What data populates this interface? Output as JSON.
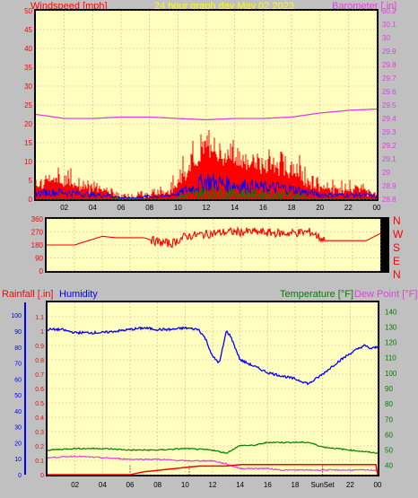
{
  "header": {
    "title": "24 hour graph day   May 02 2023",
    "left_label": "Windspeed [mph]",
    "right_label": "Barometer [.in]"
  },
  "colors": {
    "background": "#c0c0c0",
    "plot_bg": "#ffffc0",
    "grid": "#f0a0a0",
    "title": "#ffff00",
    "wind": "#ff0000",
    "gust_low": "#0000ff",
    "gust_green": "#008000",
    "barometer": "#e040e0",
    "direction": "#ff0000",
    "rain": "#ff0000",
    "humidity": "#0000ff",
    "temperature": "#008000",
    "dewpoint": "#e040e0"
  },
  "chart_data": [
    {
      "type": "bar",
      "name": "windspeed_barometer",
      "xlabel": "",
      "ylabel": "Windspeed [mph]",
      "x_ticks": [
        "02",
        "04",
        "06",
        "08",
        "10",
        "12",
        "14",
        "16",
        "18",
        "20",
        "22",
        "00"
      ],
      "y_ticks": [
        0,
        5,
        10,
        15,
        20,
        25,
        30,
        35,
        40,
        45,
        50
      ],
      "ylim": [
        0,
        50
      ],
      "y2_ticks": [
        "28.8",
        "28.9",
        "29",
        "29.1",
        "29.2",
        "29.3",
        "29.4",
        "29.5",
        "29.6",
        "29.7",
        "29.8",
        "29.9",
        "30",
        "30.1",
        "30.2"
      ],
      "y2lim": [
        28.8,
        30.2
      ],
      "grid": true,
      "series": [
        {
          "name": "Windspeed",
          "hours": [
            0,
            1,
            2,
            3,
            4,
            5,
            6,
            7,
            8,
            9,
            10,
            11,
            12,
            13,
            14,
            15,
            16,
            17,
            18,
            19,
            20,
            21,
            22,
            23,
            24
          ],
          "values": [
            4,
            5,
            5,
            4,
            3,
            3,
            1,
            1,
            2,
            2,
            4,
            8,
            13,
            11,
            10,
            9,
            8,
            8,
            7,
            5,
            3,
            3,
            3,
            3,
            2
          ]
        },
        {
          "name": "Gust",
          "hours": [
            0,
            1,
            2,
            3,
            4,
            5,
            6,
            7,
            8,
            9,
            10,
            11,
            12,
            13,
            14,
            15,
            16,
            17,
            18,
            19,
            20,
            21,
            22,
            23,
            24
          ],
          "values": [
            7,
            8,
            9,
            7,
            5,
            4,
            2,
            2,
            3,
            4,
            8,
            14,
            18,
            17,
            16,
            15,
            14,
            13,
            13,
            8,
            6,
            5,
            5,
            5,
            3
          ]
        },
        {
          "name": "Barometer",
          "hours": [
            0,
            2,
            4,
            6,
            8,
            10,
            12,
            14,
            16,
            18,
            20,
            22,
            24
          ],
          "values": [
            29.43,
            29.4,
            29.4,
            29.41,
            29.41,
            29.4,
            29.39,
            29.4,
            29.4,
            29.41,
            29.44,
            29.46,
            29.47
          ]
        }
      ]
    },
    {
      "type": "line",
      "name": "wind_direction",
      "y_ticks": [
        0,
        90,
        180,
        270,
        360
      ],
      "ylim": [
        0,
        360
      ],
      "compass": [
        "N",
        "W",
        "S",
        "E",
        "N"
      ],
      "series": [
        {
          "name": "Direction",
          "hours": [
            0,
            1,
            2,
            3,
            4,
            5,
            6,
            7,
            8,
            9,
            10,
            11,
            12,
            13,
            14,
            15,
            16,
            17,
            18,
            19,
            20,
            21,
            22,
            23,
            24
          ],
          "values": [
            180,
            180,
            180,
            210,
            240,
            230,
            230,
            230,
            200,
            190,
            240,
            250,
            260,
            270,
            270,
            270,
            265,
            260,
            265,
            270,
            210,
            210,
            210,
            210,
            260
          ]
        }
      ]
    },
    {
      "type": "line",
      "name": "rain_humidity_temperature",
      "left_label": "Rainfall [.in]",
      "humidity_label": "Humidity",
      "temp_label": "Temperature [°F]",
      "dew_label": "Dew Point [°F]",
      "x_ticks": [
        "02",
        "04",
        "06",
        "08",
        "10",
        "12",
        "14",
        "16",
        "18",
        "SunSet",
        "22",
        "00"
      ],
      "rain_ticks": [
        "0",
        "0.1",
        "0.2",
        "0.3",
        "0.4",
        "0.5",
        "0.6",
        "0.7",
        "0.8",
        "0.9",
        "1",
        "1.1"
      ],
      "rain_lim": [
        0,
        1.2
      ],
      "humidity_ticks": [
        0,
        10,
        20,
        30,
        40,
        50,
        60,
        70,
        80,
        90,
        100
      ],
      "humidity_lim": [
        0,
        108
      ],
      "temp_ticks": [
        40,
        50,
        60,
        70,
        80,
        90,
        100,
        110,
        120,
        130,
        140
      ],
      "temp_lim": [
        34,
        146
      ],
      "grid": true,
      "series": [
        {
          "name": "Humidity",
          "hours": [
            0,
            1,
            2,
            3,
            4,
            5,
            6,
            7,
            8,
            9,
            10,
            11,
            11.5,
            12,
            12.5,
            13,
            13.3,
            14,
            15,
            16,
            17,
            18,
            19,
            20,
            21,
            22,
            23,
            23.5,
            24
          ],
          "values": [
            91,
            91,
            89,
            89,
            89,
            90,
            91,
            92,
            91,
            91,
            92,
            91,
            85,
            74,
            70,
            90,
            87,
            72,
            68,
            64,
            62,
            60,
            57,
            63,
            70,
            76,
            81,
            79,
            80
          ]
        },
        {
          "name": "Rainfall",
          "hours": [
            0,
            6,
            7,
            8,
            9,
            10,
            11,
            12,
            13,
            14,
            15,
            16,
            17,
            18,
            19,
            20,
            21,
            22,
            23,
            23.9,
            24
          ],
          "values": [
            0,
            0,
            0.02,
            0.03,
            0.04,
            0.05,
            0.06,
            0.06,
            0.06,
            0.07,
            0.07,
            0.07,
            0.07,
            0.07,
            0.07,
            0.07,
            0.07,
            0.07,
            0.07,
            0.07,
            0.0
          ]
        },
        {
          "name": "Temperature",
          "hours": [
            0,
            2,
            4,
            6,
            8,
            10,
            12,
            13,
            14,
            15,
            16,
            17,
            18,
            19,
            20,
            22,
            23,
            24
          ],
          "values": [
            50,
            51,
            51,
            50,
            50,
            51,
            50,
            48,
            53,
            53,
            55,
            55,
            55,
            55,
            52,
            50,
            49,
            48
          ]
        },
        {
          "name": "Dew Point",
          "hours": [
            0,
            2,
            4,
            6,
            8,
            10,
            12,
            13,
            14,
            15,
            16,
            17,
            18,
            19,
            20,
            22,
            24
          ],
          "values": [
            45,
            46,
            45,
            44,
            44,
            43,
            43,
            41,
            38,
            38,
            38,
            37,
            37,
            37,
            37,
            37,
            37
          ]
        }
      ]
    }
  ]
}
